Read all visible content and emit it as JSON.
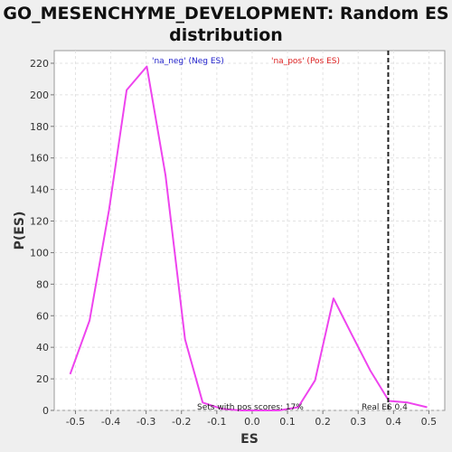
{
  "chart_data": {
    "type": "line",
    "title_line1": "GO_MESENCHYME_DEVELOPMENT: Random ES",
    "title_line2": "distribution",
    "xlabel": "ES",
    "ylabel": "P(ES)",
    "xlim": [
      -0.56,
      0.545
    ],
    "ylim": [
      0,
      228
    ],
    "x_ticks": [
      -0.5,
      -0.4,
      -0.3,
      -0.2,
      -0.1,
      0.0,
      0.1,
      0.2,
      0.3,
      0.4,
      0.5
    ],
    "x_tick_labels": [
      "-0.5",
      "-0.4",
      "-0.3",
      "-0.2",
      "-0.1",
      "0.0",
      "0.1",
      "0.2",
      "0.3",
      "0.4",
      "0.5"
    ],
    "y_ticks": [
      0,
      20,
      40,
      60,
      80,
      100,
      120,
      140,
      160,
      180,
      200,
      220
    ],
    "y_tick_labels": [
      "0",
      "20",
      "40",
      "60",
      "80",
      "100",
      "120",
      "140",
      "160",
      "180",
      "200",
      "220"
    ],
    "grid": true,
    "legend": [
      {
        "label": "'na_neg' (Neg ES)",
        "color": "#2222cc"
      },
      {
        "label": "'na_pos' (Pos ES)",
        "color": "#dd2222"
      }
    ],
    "series": [
      {
        "color": "#ee44ee",
        "x": [
          -0.515,
          -0.46,
          -0.405,
          -0.355,
          -0.298,
          -0.245,
          -0.19,
          -0.14,
          -0.085,
          -0.03,
          0.02,
          0.075,
          0.13,
          0.178,
          0.23,
          0.282,
          0.335,
          0.387,
          0.44,
          0.495
        ],
        "y": [
          23,
          57,
          127,
          203,
          218,
          149,
          45,
          5,
          1,
          0,
          0,
          0,
          2,
          19,
          71,
          48,
          25,
          6,
          5,
          2
        ]
      }
    ],
    "real_es": 0.385,
    "annotations": {
      "sets_text": "Sets with pos scores: 17%",
      "real_es_text": "Real ES 0.4"
    }
  }
}
